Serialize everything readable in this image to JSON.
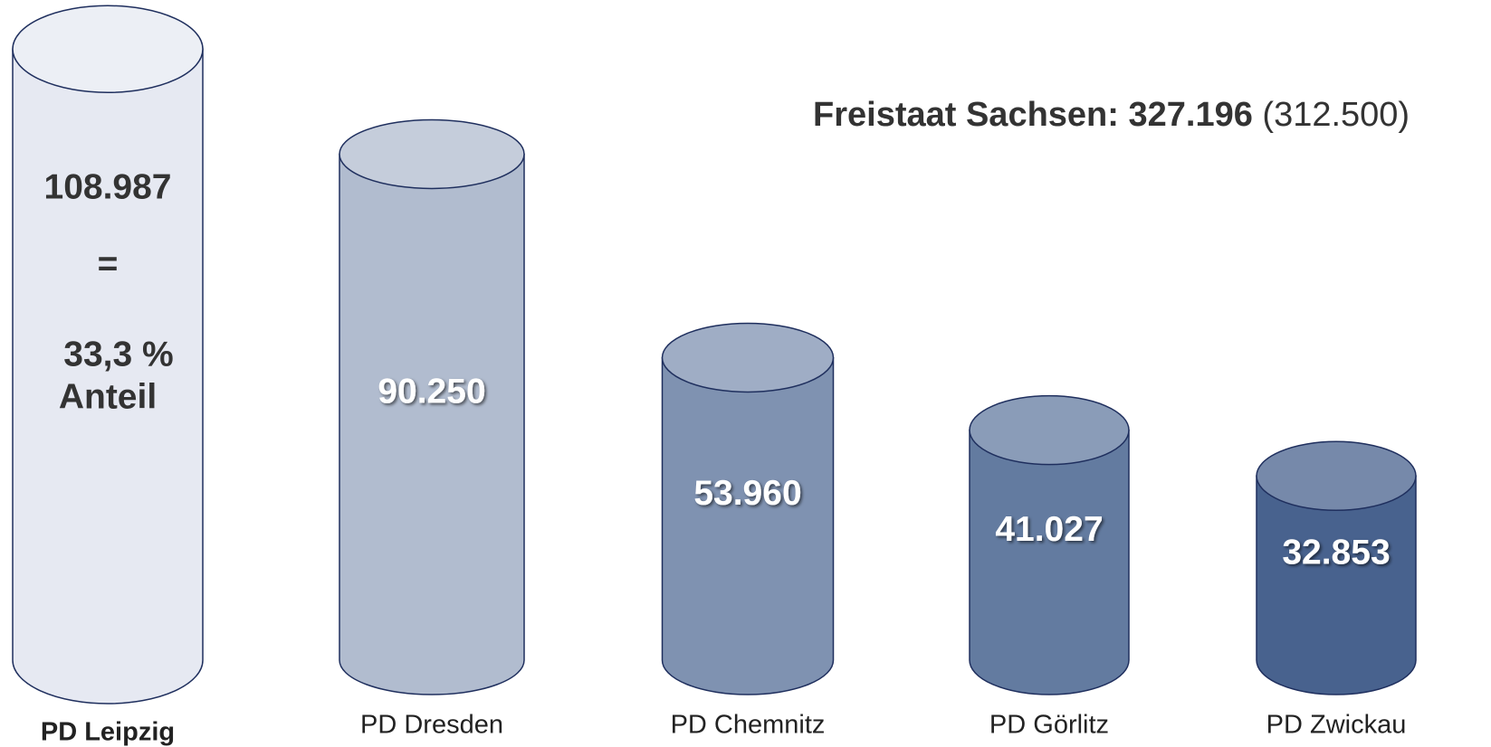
{
  "chart_data": {
    "type": "cylinder",
    "title": {
      "label": "Freistaat Sachsen:",
      "total": "327.196",
      "previous": "(312.500)"
    },
    "categories": [
      "PD Leipzig",
      "PD Dresden",
      "PD Chemnitz",
      "PD Görlitz",
      "PD Zwickau"
    ],
    "values": [
      108987,
      90250,
      53960,
      41027,
      32853
    ],
    "value_labels": [
      "108.987",
      "90.250",
      "53.960",
      "41.027",
      "32.853"
    ],
    "colors": [
      "#e6e9f2",
      "#b1bccf",
      "#7f92b1",
      "#637ba0",
      "#48628e"
    ],
    "highlight": 0,
    "highlight_note": [
      "=",
      "33,3 %",
      "Anteil"
    ],
    "ylim": [
      0,
      110000
    ]
  }
}
